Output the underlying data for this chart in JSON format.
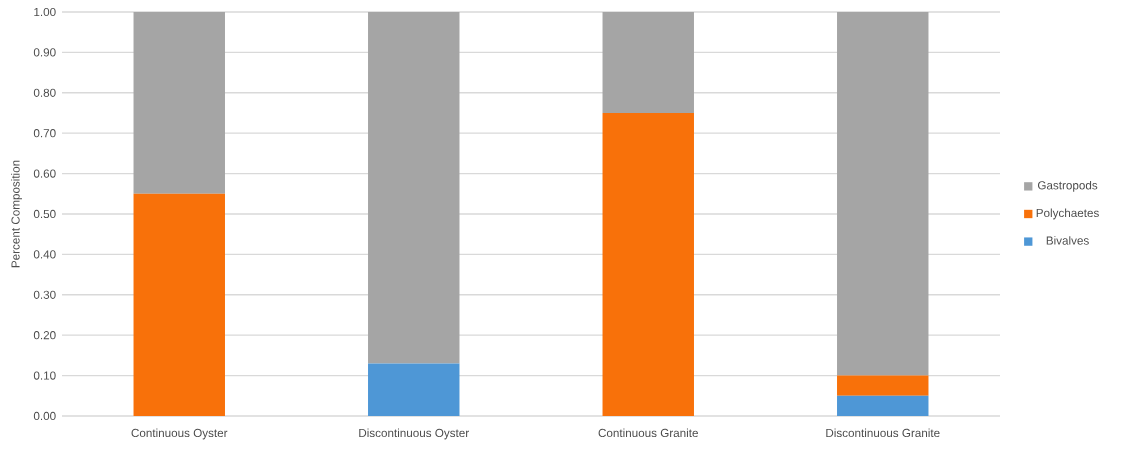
{
  "chart_data": {
    "type": "bar",
    "stacked": true,
    "ylabel": "Percent Composition",
    "categories": [
      "Continuous Oyster",
      "Discontinuous Oyster",
      "Continuous Granite",
      "Discontinuous Granite"
    ],
    "series": [
      {
        "name": "Bivalves",
        "color": "#4e97d6",
        "values": [
          0,
          0.13,
          0,
          0.05
        ]
      },
      {
        "name": "Polychaetes",
        "color": "#f8710a",
        "values": [
          0.55,
          0,
          0.75,
          0.05
        ]
      },
      {
        "name": "Gastropods",
        "color": "#a5a5a5",
        "values": [
          0.45,
          0.87,
          0.25,
          0.9
        ]
      }
    ],
    "ylim": [
      0,
      1
    ],
    "yticks": [
      {
        "value": 0,
        "label": "0.00"
      },
      {
        "value": 0.1,
        "label": "0.10"
      },
      {
        "value": 0.2,
        "label": "0.20"
      },
      {
        "value": 0.3,
        "label": "0.30"
      },
      {
        "value": 0.4,
        "label": "0.40"
      },
      {
        "value": 0.5,
        "label": "0.50"
      },
      {
        "value": 0.6,
        "label": "0.60"
      },
      {
        "value": 0.7,
        "label": "0.70"
      },
      {
        "value": 0.8,
        "label": "0.80"
      },
      {
        "value": 0.9,
        "label": "0.90"
      },
      {
        "value": 1,
        "label": "1.00"
      }
    ],
    "grid": "y",
    "legend": "right"
  }
}
